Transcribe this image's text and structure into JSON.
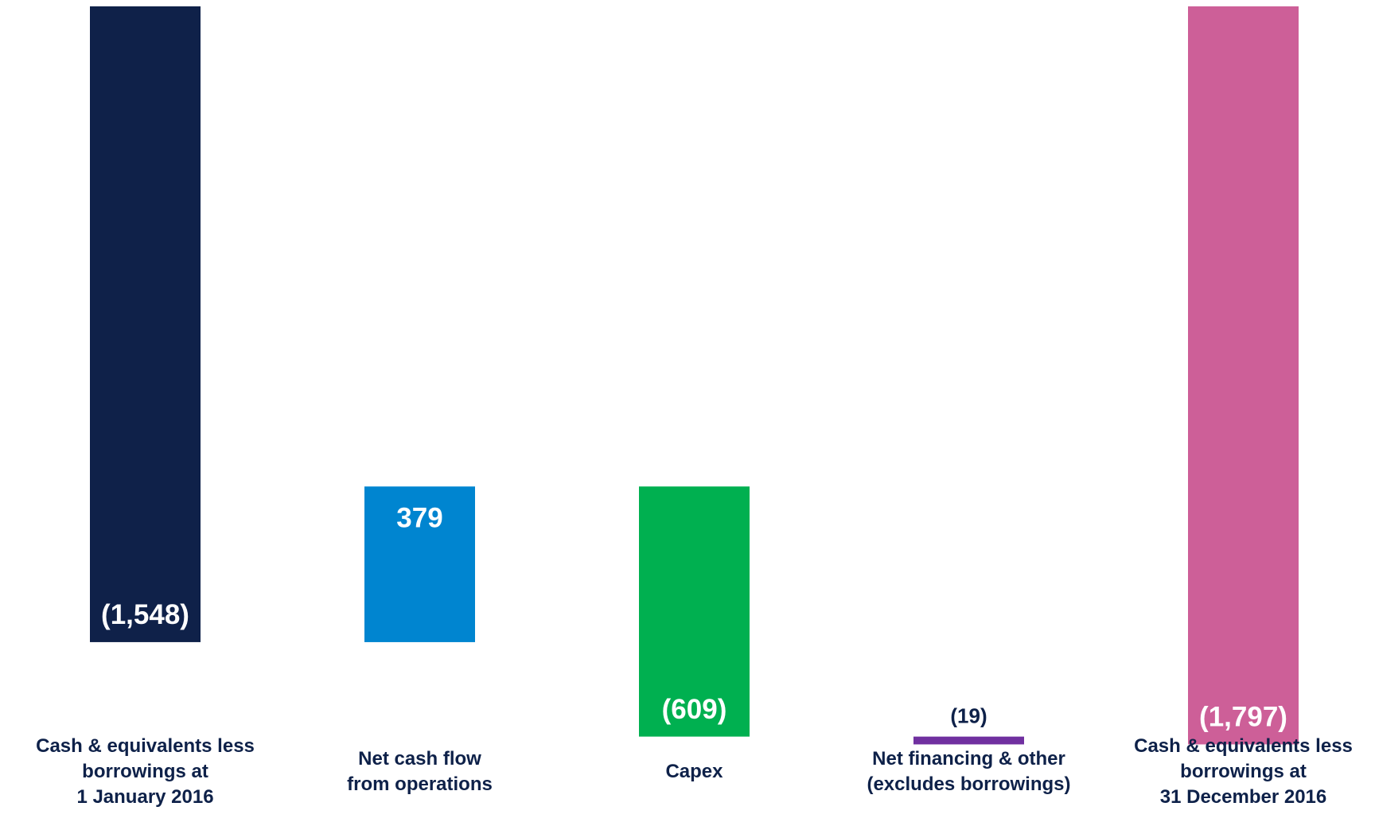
{
  "chart_data": {
    "type": "waterfall",
    "categories": [
      "Cash & equivalents less\nborrowings at\n1 January  2016",
      "Net cash flow\nfrom operations",
      "Capex",
      "Net financing & other\n(excludes borrowings)",
      "Cash & equivalents less\nborrowings at\n31 December  2016"
    ],
    "values": [
      -1548,
      379,
      -609,
      -19,
      -1797
    ],
    "value_labels": [
      "(1,548)",
      "379",
      "(609)",
      "(19)",
      "(1,797)"
    ],
    "measure": [
      "absolute",
      "relative",
      "relative",
      "relative",
      "absolute"
    ],
    "colors": [
      "#0f2149",
      "#0085d0",
      "#00b050",
      "#7030a0",
      "#cd5f98"
    ],
    "ylim": [
      -1800,
      0
    ]
  }
}
